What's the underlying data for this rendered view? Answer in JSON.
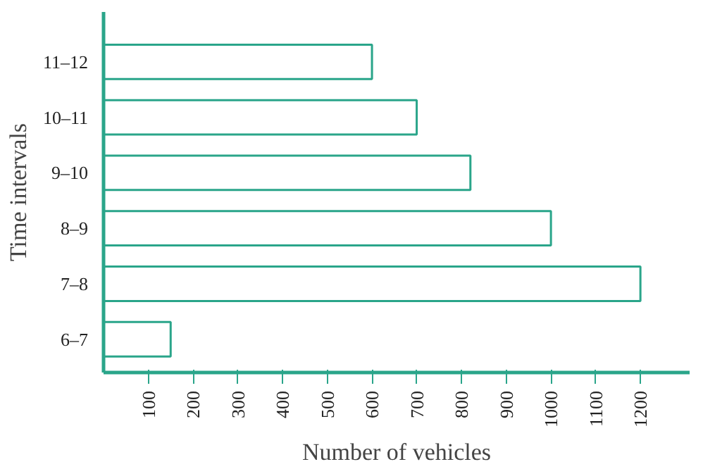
{
  "chart_data": {
    "type": "bar",
    "orientation": "horizontal",
    "xlabel": "Number of vehicles",
    "ylabel": "Time intervals",
    "categories": [
      "11–12",
      "10–11",
      "9–10",
      "8–9",
      "7–8",
      "6–7"
    ],
    "values": [
      600,
      700,
      820,
      1000,
      1200,
      150
    ],
    "color": "#2aa58a",
    "xlim": [
      0,
      1310
    ],
    "xticks": [
      100,
      200,
      300,
      400,
      500,
      600,
      700,
      800,
      900,
      1000,
      1100,
      1200
    ],
    "grid": false
  }
}
